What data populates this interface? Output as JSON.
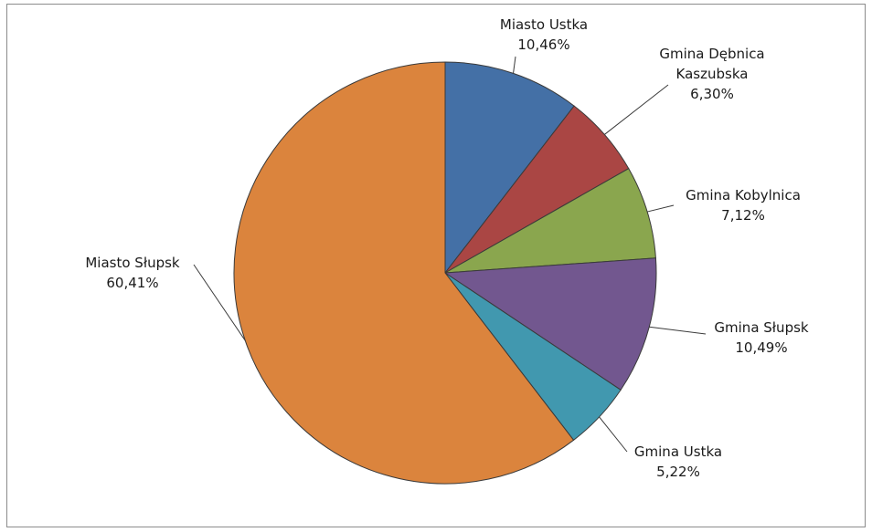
{
  "chart_data": {
    "type": "pie",
    "title": "",
    "start_angle_deg": 0,
    "direction": "clockwise",
    "legend": "none",
    "slices": [
      {
        "name": "Miasto Ustka",
        "value": 10.46,
        "label_lines": [
          "Miasto Ustka",
          "10,46%"
        ],
        "color": "#4470A6"
      },
      {
        "name": "Gmina Dębnica Kaszubska",
        "value": 6.3,
        "label_lines": [
          "Gmina Dębnica",
          "Kaszubska",
          "6,30%"
        ],
        "color": "#AA4644"
      },
      {
        "name": "Gmina Kobylnica",
        "value": 7.12,
        "label_lines": [
          "Gmina Kobylnica",
          "7,12%"
        ],
        "color": "#8AA64E"
      },
      {
        "name": "Gmina Słupsk",
        "value": 10.49,
        "label_lines": [
          "Gmina Słupsk",
          "10,49%"
        ],
        "color": "#72578F"
      },
      {
        "name": "Gmina Ustka",
        "value": 5.22,
        "label_lines": [
          "Gmina Ustka",
          "5,22%"
        ],
        "color": "#4198AF"
      },
      {
        "name": "Miasto Słupsk",
        "value": 60.41,
        "label_lines": [
          "Miasto Słupsk",
          "60,41%"
        ],
        "color": "#DB843D"
      }
    ]
  }
}
